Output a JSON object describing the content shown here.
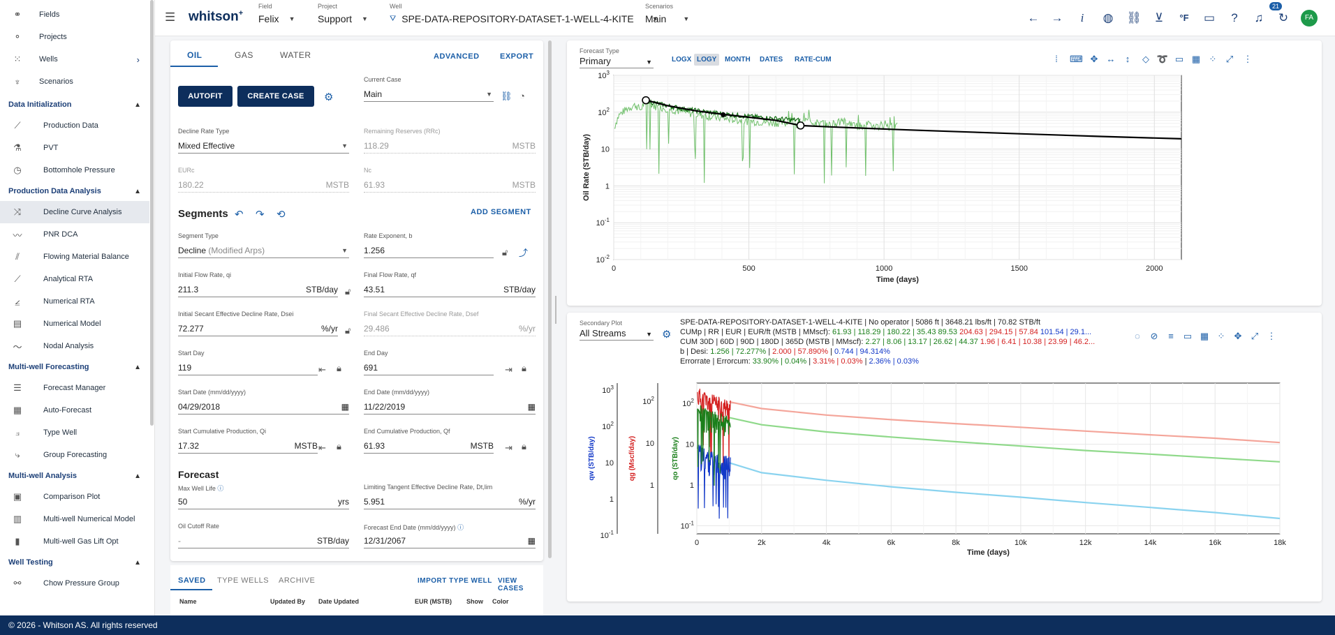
{
  "sidebar": {
    "top_items": [
      {
        "label": "Fields",
        "icon": "fields-icon"
      },
      {
        "label": "Projects",
        "icon": "projects-icon"
      },
      {
        "label": "Wells",
        "icon": "wells-icon"
      },
      {
        "label": "Scenarios",
        "icon": "scenarios-icon"
      }
    ],
    "sections": [
      {
        "title": "Data Initialization",
        "items": [
          "Production Data",
          "PVT",
          "Bottomhole Pressure"
        ]
      },
      {
        "title": "Production Data Analysis",
        "items": [
          "Decline Curve Analysis",
          "PNR DCA",
          "Flowing Material Balance",
          "Analytical RTA",
          "Numerical RTA",
          "Numerical Model",
          "Nodal Analysis"
        ]
      },
      {
        "title": "Multi-well Forecasting",
        "items": [
          "Forecast Manager",
          "Auto-Forecast",
          "Type Well",
          "Group Forecasting"
        ]
      },
      {
        "title": "Multi-well Analysis",
        "items": [
          "Comparison Plot",
          "Multi-well Numerical Model",
          "Multi-well Gas Lift Opt"
        ]
      },
      {
        "title": "Well Testing",
        "items": [
          "Chow Pressure Group"
        ]
      }
    ],
    "active": "Decline Curve Analysis"
  },
  "topbar": {
    "logo": "whitson",
    "logo_sup": "+",
    "field_label": "Field",
    "field_value": "Felix",
    "project_label": "Project",
    "project_value": "Support",
    "well_label": "Well",
    "well_value": "SPE-DATA-REPOSITORY-DATASET-1-WELL-4-KITE",
    "scenarios_label": "Scenarios",
    "scenarios_value": "Main",
    "notif_count": "21",
    "temp_unit": "°F",
    "avatar": "FA"
  },
  "panel": {
    "tabs": [
      "OIL",
      "GAS",
      "WATER"
    ],
    "advanced": "ADVANCED",
    "export": "EXPORT",
    "autofit": "AUTOFIT",
    "create_case": "CREATE CASE",
    "current_case_label": "Current Case",
    "current_case": "Main",
    "decline_type_label": "Decline Rate Type",
    "decline_type": "Mixed Effective",
    "remaining_label": "Remaining Reserves (RRc)",
    "remaining": "118.29",
    "remaining_unit": "MSTB",
    "eur_label": "EURc",
    "eur": "180.22",
    "eur_unit": "MSTB",
    "np_label": "Nc",
    "np": "61.93",
    "np_unit": "MSTB",
    "segments_title": "Segments",
    "add_segment": "ADD SEGMENT",
    "seg_type_label": "Segment Type",
    "seg_type": "Decline",
    "seg_type_sub": "(Modified Arps)",
    "rate_exp_label": "Rate Exponent, b",
    "rate_exp": "1.256",
    "qi_label": "Initial Flow Rate, qi",
    "qi": "211.3",
    "qi_unit": "STB/day",
    "qf_label": "Final Flow Rate, qf",
    "qf": "43.51",
    "qf_unit": "STB/day",
    "dsei_label": "Initial Secant Effective Decline Rate, Dsei",
    "dsei": "72.277",
    "dsei_unit": "%/yr",
    "dsef_label": "Final Secant Effective Decline Rate, Dsef",
    "dsef": "29.486",
    "dsef_unit": "%/yr",
    "start_day_label": "Start Day",
    "start_day": "119",
    "end_day_label": "End Day",
    "end_day": "691",
    "start_date_label": "Start Date (mm/dd/yyyy)",
    "start_date": "04/29/2018",
    "end_date_label": "End Date (mm/dd/yyyy)",
    "end_date": "11/22/2019",
    "start_cum_label": "Start Cumulative Production, Qi",
    "start_cum": "17.32",
    "start_cum_unit": "MSTB",
    "end_cum_label": "End Cumulative Production, Qf",
    "end_cum": "61.93",
    "end_cum_unit": "MSTB",
    "forecast_title": "Forecast",
    "max_life_label": "Max Well Life",
    "max_life": "50",
    "max_life_unit": "yrs",
    "limit_decl_label": "Limiting Tangent Effective Decline Rate, Dt,lim",
    "limit_decl": "5.951",
    "limit_decl_unit": "%/yr",
    "cutoff_label": "Oil Cutoff Rate",
    "cutoff": "-",
    "cutoff_unit": "STB/day",
    "fc_end_label": "Forecast End Date (mm/dd/yyyy)",
    "fc_end": "12/31/2067",
    "bottom_tabs": [
      "SAVED",
      "TYPE WELLS",
      "ARCHIVE"
    ],
    "import_type_well": "IMPORT TYPE WELL",
    "view_cases": "VIEW CASES",
    "table_headers": [
      "Name",
      "Updated By",
      "Date Updated",
      "EUR (MSTB)",
      "Show",
      "Color"
    ]
  },
  "chart1": {
    "forecast_type_label": "Forecast Type",
    "forecast_type": "Primary",
    "tools": [
      "LOGX",
      "LOGY",
      "MONTH",
      "DATES",
      "RATE-CUM"
    ],
    "active_tool": "LOGY"
  },
  "chart2": {
    "secondary_label": "Secondary Plot",
    "secondary": "All Streams",
    "info_line1": "SPE-DATA-REPOSITORY-DATASET-1-WELL-4-KITE | No operator | 5086 ft | 3648.21 lbs/ft | 70.82 STB/ft",
    "info_cum_prefix": "CUMp | RR | EUR | EUR/ft (MSTB | MMscf): ",
    "info_cum_g": "61.93 | 118.29 | 180.22 | 35.43 89.53",
    "info_cum_r": "204.63 | 294.15 | 57.84",
    "info_cum_b": "101.54 | 29.1...",
    "info_cum30_prefix": "CUM 30D | 60D | 90D | 180D | 365D (MSTB | MMscf): ",
    "info_cum30_g": "2.27 | 8.06 | 13.17 | 26.62 | 44.37",
    "info_cum30_r": "1.96 | 6.41 | 10.38 | 23.99 | 46.2...",
    "info_b_prefix": "b | Desi: ",
    "info_b_g": "1.256 | 72.277%",
    "info_b_r": "2.000 | 57.890%",
    "info_b_b": "0.744 | 94.314%",
    "info_err_prefix": "Errorrate | Errorcum: ",
    "info_err_g": "33.90% | 0.04%",
    "info_err_r": "3.31% | 0.03%",
    "info_err_b": "2.36% | 0.03%"
  },
  "chart_data": [
    {
      "type": "line",
      "title": "",
      "xlabel": "Time (days)",
      "ylabel": "Oil Rate (STB/day)",
      "xlim": [
        0,
        2100
      ],
      "ylim": [
        0.01,
        1000
      ],
      "yscale": "log",
      "x_ticks": [
        "0",
        "500",
        "1000",
        "1500",
        "2000"
      ],
      "y_ticks": [
        "10^-2",
        "10^-1",
        "1",
        "10",
        "10^2",
        "10^3"
      ],
      "series": [
        {
          "color": "#2e9c2e",
          "x": [
            0,
            20,
            50,
            80,
            100,
            119,
            150,
            200,
            250,
            300,
            350,
            400,
            450,
            500,
            550,
            600,
            650,
            691,
            700,
            750,
            800,
            850,
            900,
            950,
            1000,
            1050
          ],
          "y": [
            30,
            80,
            120,
            150,
            110,
            200,
            140,
            120,
            100,
            85,
            75,
            65,
            60,
            55,
            52,
            50,
            47,
            45,
            60,
            50,
            45,
            55,
            40,
            45,
            38,
            40
          ]
        },
        {
          "color": "#000000",
          "x": [
            119,
            200,
            300,
            400,
            500,
            600,
            691,
            800,
            1000,
            1200,
            1500,
            1800,
            2100
          ],
          "y": [
            211.3,
            150,
            110,
            88,
            73,
            60,
            43.5,
            40,
            35,
            31,
            26,
            22,
            19
          ]
        }
      ],
      "markers": [
        {
          "x": 119,
          "y": 211.3,
          "label": "start"
        },
        {
          "x": 405,
          "y": 85,
          "label": "mid"
        },
        {
          "x": 691,
          "y": 43.51,
          "label": "end"
        }
      ],
      "grid": true
    },
    {
      "type": "line",
      "xlabel": "Time (days)",
      "ylabel": "qo (STB/day)",
      "ylabel2": "qg (Mscf/day)",
      "ylabel3": "qw (STB/day)",
      "xlim": [
        0,
        18000
      ],
      "x_ticks": [
        "0",
        "2k",
        "4k",
        "6k",
        "8k",
        "10k",
        "12k",
        "14k",
        "16k",
        "18k"
      ],
      "yscale": "log",
      "series": [
        {
          "color": "#f4a59a",
          "x": [
            1000,
            2000,
            4000,
            6000,
            8000,
            10000,
            12000,
            14000,
            16000,
            18000
          ],
          "y": [
            110,
            75,
            52,
            40,
            32,
            26,
            21,
            17,
            14,
            11
          ]
        },
        {
          "color": "#8fd98a",
          "x": [
            1000,
            2000,
            4000,
            6000,
            8000,
            10000,
            12000,
            14000,
            16000,
            18000
          ],
          "y": [
            45,
            30,
            20,
            15,
            11.5,
            9,
            7,
            5.7,
            4.6,
            3.7
          ]
        },
        {
          "color": "#8ad3ef",
          "x": [
            1000,
            2000,
            4000,
            6000,
            8000,
            10000,
            12000,
            14000,
            16000,
            18000
          ],
          "y": [
            3.5,
            2.0,
            1.3,
            0.9,
            0.66,
            0.5,
            0.37,
            0.28,
            0.21,
            0.15
          ]
        }
      ],
      "grid": true
    }
  ]
}
